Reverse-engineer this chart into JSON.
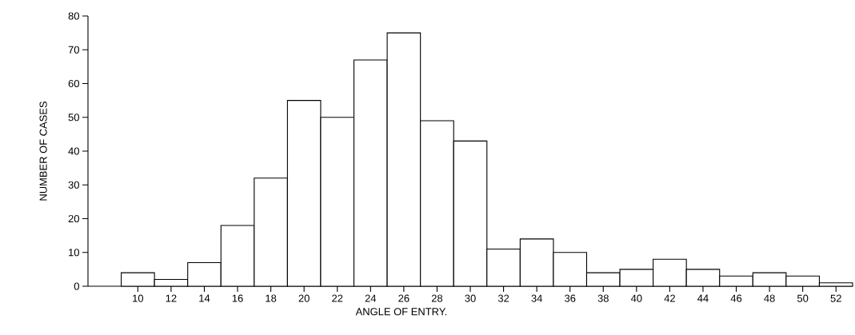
{
  "chart_data": {
    "type": "histogram",
    "xlabel": "ANGLE OF ENTRY.",
    "ylabel": "NUMBER OF CASES",
    "bins": [
      9,
      11,
      13,
      15,
      17,
      19,
      21,
      23,
      25,
      27,
      29,
      31,
      33,
      35,
      37,
      39,
      41,
      43,
      45,
      47,
      49,
      51,
      53
    ],
    "values": [
      4,
      2,
      7,
      18,
      32,
      55,
      50,
      67,
      75,
      49,
      43,
      11,
      14,
      10,
      4,
      5,
      8,
      5,
      3,
      4,
      3,
      1
    ],
    "color": "#ffffff",
    "xlim": [
      7,
      53
    ],
    "xticks": [
      10,
      12,
      14,
      16,
      18,
      20,
      22,
      24,
      26,
      28,
      30,
      32,
      34,
      36,
      38,
      40,
      42,
      44,
      46,
      48,
      50,
      52
    ],
    "ylim": [
      0,
      80
    ],
    "yticks": [
      0,
      10,
      20,
      30,
      40,
      50,
      60,
      70,
      80
    ],
    "grid": false
  }
}
